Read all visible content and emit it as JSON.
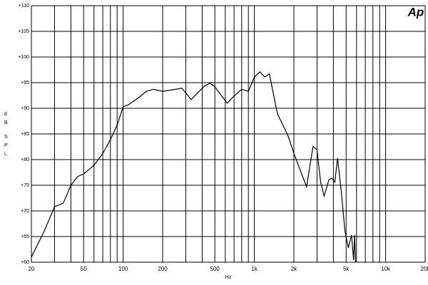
{
  "chart_data": {
    "type": "line",
    "log_x": true,
    "grid": true,
    "logo": "Ap",
    "xlabel": "Hz",
    "ylabel": "dB SPL",
    "xlim": [
      20,
      20000
    ],
    "ylim": [
      60,
      110
    ],
    "xticks": [
      20,
      {
        "value": 30,
        "label": null
      },
      {
        "value": 40,
        "label": null
      },
      50,
      {
        "value": 60,
        "label": null
      },
      {
        "value": 70,
        "label": null
      },
      {
        "value": 80,
        "label": null
      },
      {
        "value": 90,
        "label": null
      },
      100,
      200,
      {
        "value": 300,
        "label": null
      },
      {
        "value": 400,
        "label": null
      },
      500,
      {
        "value": 600,
        "label": null
      },
      {
        "value": 700,
        "label": null
      },
      {
        "value": 800,
        "label": null
      },
      {
        "value": 900,
        "label": null
      },
      {
        "value": 1000,
        "label": "1k"
      },
      {
        "value": 2000,
        "label": "2k"
      },
      {
        "value": 3000,
        "label": null
      },
      {
        "value": 4000,
        "label": null
      },
      {
        "value": 5000,
        "label": "5k"
      },
      {
        "value": 6000,
        "label": null
      },
      {
        "value": 7000,
        "label": null
      },
      {
        "value": 8000,
        "label": null
      },
      {
        "value": 9000,
        "label": null
      },
      {
        "value": 10000,
        "label": "10k"
      },
      {
        "value": 20000,
        "label": "20k"
      }
    ],
    "yticks": [
      {
        "value": 60,
        "label": "+60"
      },
      {
        "value": 65,
        "label": "+65"
      },
      {
        "value": 70,
        "label": "+70"
      },
      {
        "value": 75,
        "label": "+75"
      },
      {
        "value": 80,
        "label": "+80"
      },
      {
        "value": 85,
        "label": "+85"
      },
      {
        "value": 90,
        "label": "+90"
      },
      {
        "value": 95,
        "label": "+95"
      },
      {
        "value": 100,
        "label": "+100"
      },
      {
        "value": 105,
        "label": "+105"
      },
      {
        "value": 110,
        "label": "+110"
      }
    ],
    "series": [
      {
        "color": "#000000",
        "x": [
          20,
          25,
          30,
          35,
          40,
          45,
          50,
          60,
          70,
          80,
          90,
          100,
          110,
          130,
          150,
          170,
          200,
          250,
          280,
          300,
          330,
          370,
          420,
          460,
          500,
          580,
          620,
          700,
          800,
          900,
          1000,
          1100,
          1200,
          1300,
          1500,
          1800,
          2000,
          2300,
          2500,
          2800,
          3000,
          3200,
          3400,
          3700,
          3900,
          4100,
          4300,
          4600,
          4900,
          5200,
          5500,
          5700,
          5800,
          5900
        ],
        "values": [
          61,
          66,
          70.8,
          71.5,
          75,
          76.7,
          77.2,
          78.9,
          81.2,
          83.9,
          86.7,
          90.3,
          90.7,
          92,
          93.3,
          93.7,
          93.3,
          93.7,
          93.9,
          93,
          91.7,
          93,
          94.4,
          94.9,
          94.2,
          92,
          91,
          92.4,
          93.7,
          93.3,
          96.1,
          97.1,
          96.1,
          96.7,
          88.9,
          84.7,
          81.2,
          77.1,
          74.7,
          82.6,
          81.9,
          75.6,
          72.9,
          76.1,
          76.4,
          75.6,
          80.3,
          73.6,
          66,
          62.8,
          65.3,
          60.4,
          65.3,
          60
        ]
      }
    ]
  }
}
